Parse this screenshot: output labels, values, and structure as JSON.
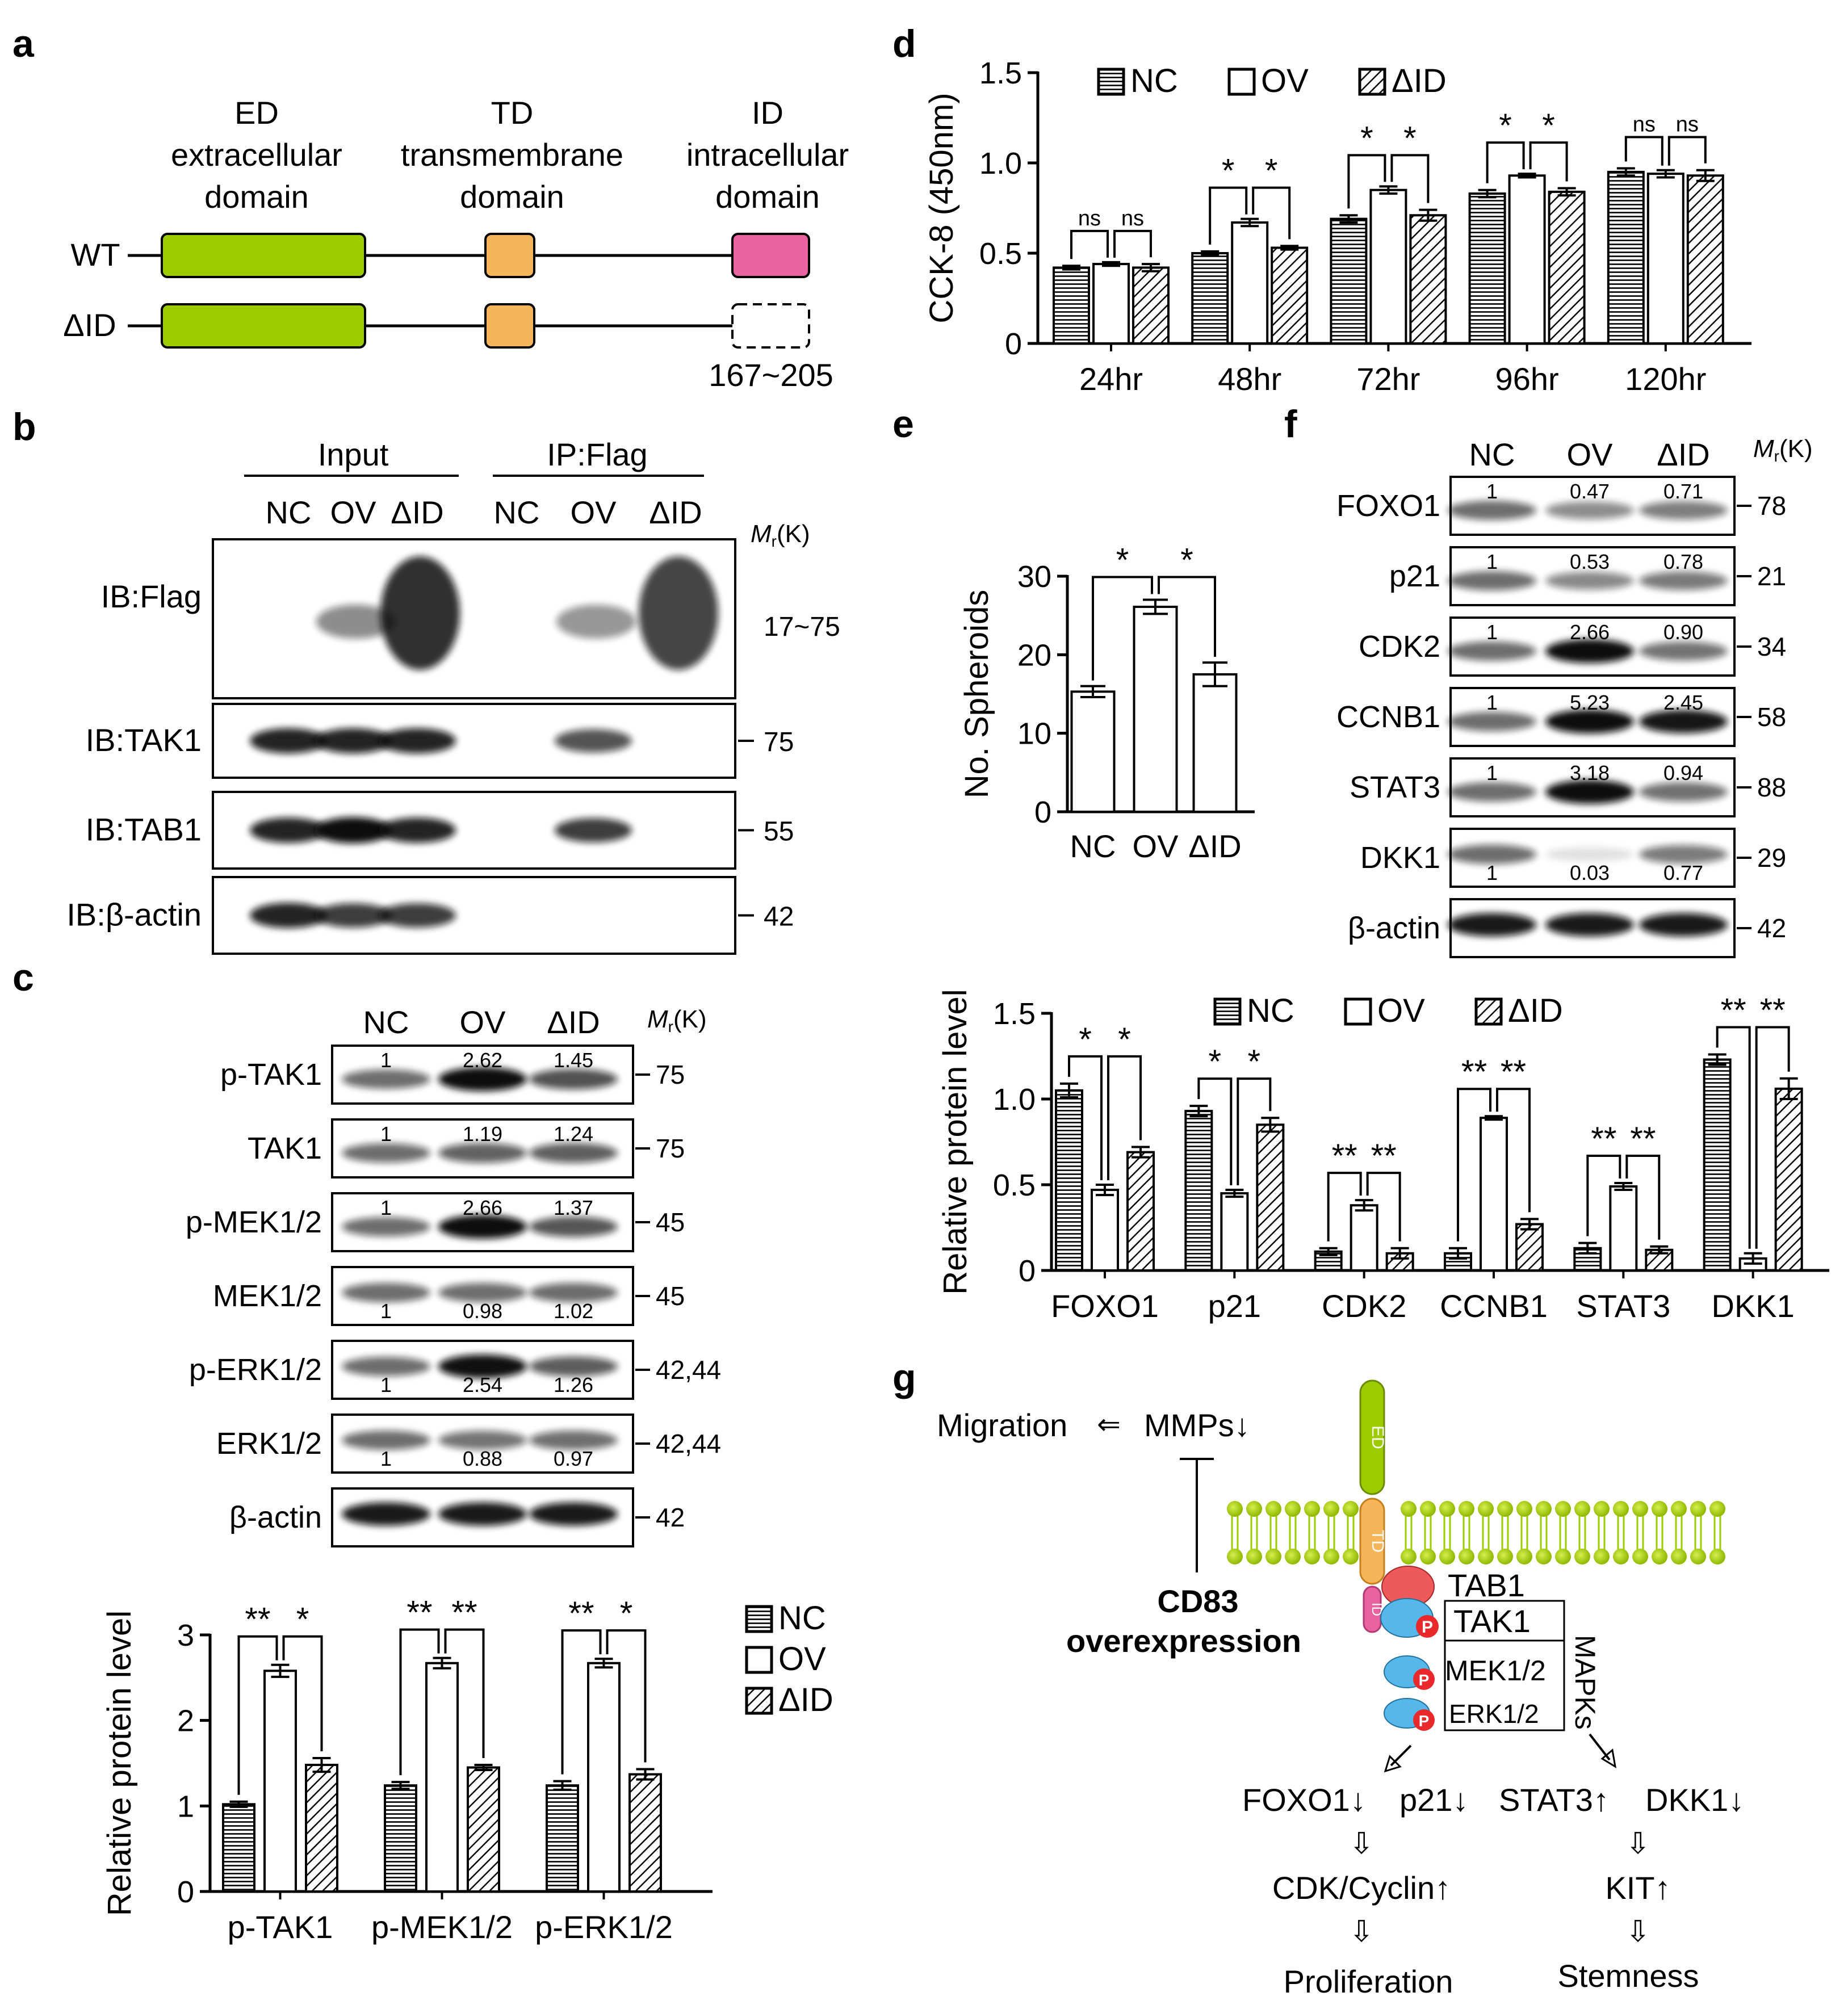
{
  "panel_labels": {
    "a": "a",
    "b": "b",
    "c": "c",
    "d": "d",
    "e": "e",
    "f": "f",
    "g": "g"
  },
  "legend": {
    "nc": "NC",
    "ov": "OV",
    "did": "ΔID"
  },
  "panel_a": {
    "domains": [
      {
        "abbr": "ED",
        "name1": "extracellular",
        "name2": "domain",
        "color": "#9ccc00"
      },
      {
        "abbr": "TD",
        "name1": "transmembrane",
        "name2": "domain",
        "color": "#f7b55a"
      },
      {
        "abbr": "ID",
        "name1": "intracellular",
        "name2": "domain",
        "color": "#e8639f"
      }
    ],
    "rows": [
      "WT",
      "ΔID"
    ],
    "deleted_range": "167~205"
  },
  "panel_b": {
    "group_input": "Input",
    "group_ip": "IP:Flag",
    "lanes": [
      "NC",
      "OV",
      "ΔID",
      "NC",
      "OV",
      "ΔID"
    ],
    "mr_header_m": "M",
    "mr_header_sub": "r",
    "mr_header_k": "(K)",
    "blots": [
      {
        "label": "IB:Flag",
        "mr": "17~75"
      },
      {
        "label": "IB:TAK1",
        "mr": "75"
      },
      {
        "label": "IB:TAB1",
        "mr": "55"
      },
      {
        "label": "IB:β-actin",
        "mr": "42"
      }
    ]
  },
  "panel_c": {
    "lanes": [
      "NC",
      "OV",
      "ΔID"
    ],
    "blots": [
      {
        "label": "p-TAK1",
        "mr": "75",
        "quant": [
          "1",
          "2.62",
          "1.45"
        ],
        "qpos": "top"
      },
      {
        "label": "TAK1",
        "mr": "75",
        "quant": [
          "1",
          "1.19",
          "1.24"
        ],
        "qpos": "top"
      },
      {
        "label": "p-MEK1/2",
        "mr": "45",
        "quant": [
          "1",
          "2.66",
          "1.37"
        ],
        "qpos": "top"
      },
      {
        "label": "MEK1/2",
        "mr": "45",
        "quant": [
          "1",
          "0.98",
          "1.02"
        ],
        "qpos": "bottom"
      },
      {
        "label": "p-ERK1/2",
        "mr": "42,44",
        "quant": [
          "1",
          "2.54",
          "1.26"
        ],
        "qpos": "bottom"
      },
      {
        "label": "ERK1/2",
        "mr": "42,44",
        "quant": [
          "1",
          "0.88",
          "0.97"
        ],
        "qpos": "bottom"
      },
      {
        "label": "β-actin",
        "mr": "42",
        "quant": [],
        "qpos": "none"
      }
    ]
  },
  "panel_f": {
    "lanes": [
      "NC",
      "OV",
      "ΔID"
    ],
    "blots": [
      {
        "label": "FOXO1",
        "mr": "78",
        "quant": [
          "1",
          "0.47",
          "0.71"
        ],
        "qpos": "top"
      },
      {
        "label": "p21",
        "mr": "21",
        "quant": [
          "1",
          "0.53",
          "0.78"
        ],
        "qpos": "top"
      },
      {
        "label": "CDK2",
        "mr": "34",
        "quant": [
          "1",
          "2.66",
          "0.90"
        ],
        "qpos": "top"
      },
      {
        "label": "CCNB1",
        "mr": "58",
        "quant": [
          "1",
          "5.23",
          "2.45"
        ],
        "qpos": "top"
      },
      {
        "label": "STAT3",
        "mr": "88",
        "quant": [
          "1",
          "3.18",
          "0.94"
        ],
        "qpos": "top"
      },
      {
        "label": "DKK1",
        "mr": "29",
        "quant": [
          "1",
          "0.03",
          "0.77"
        ],
        "qpos": "bottom"
      },
      {
        "label": "β-actin",
        "mr": "42",
        "quant": [],
        "qpos": "none"
      }
    ]
  },
  "chart_data": [
    {
      "panel": "c",
      "type": "bar",
      "categories": [
        "p-TAK1",
        "p-MEK1/2",
        "p-ERK1/2"
      ],
      "series": [
        {
          "name": "NC",
          "values": [
            1.02,
            1.24,
            1.24
          ],
          "errors": [
            0.03,
            0.04,
            0.05
          ]
        },
        {
          "name": "OV",
          "values": [
            2.58,
            2.67,
            2.67
          ],
          "errors": [
            0.07,
            0.06,
            0.05
          ]
        },
        {
          "name": "ΔID",
          "values": [
            1.48,
            1.45,
            1.37
          ],
          "errors": [
            0.08,
            0.03,
            0.06
          ]
        }
      ],
      "ylabel": "Relative protein level",
      "ylim": [
        0,
        3
      ],
      "yticks": [
        "0",
        "1",
        "2",
        "3"
      ],
      "significance": [
        [
          "**",
          "*"
        ],
        [
          "**",
          "**"
        ],
        [
          "**",
          "*"
        ]
      ]
    },
    {
      "panel": "d",
      "type": "bar",
      "categories": [
        "24hr",
        "48hr",
        "72hr",
        "96hr",
        "120hr"
      ],
      "series": [
        {
          "name": "NC",
          "values": [
            0.42,
            0.5,
            0.69,
            0.83,
            0.95
          ],
          "errors": [
            0.01,
            0.01,
            0.02,
            0.02,
            0.02
          ]
        },
        {
          "name": "OV",
          "values": [
            0.44,
            0.67,
            0.85,
            0.93,
            0.94
          ],
          "errors": [
            0.01,
            0.02,
            0.02,
            0.01,
            0.02
          ]
        },
        {
          "name": "ΔID",
          "values": [
            0.42,
            0.53,
            0.71,
            0.84,
            0.93
          ],
          "errors": [
            0.02,
            0.01,
            0.03,
            0.02,
            0.03
          ]
        }
      ],
      "ylabel": "CCK-8 (450nm)",
      "ylim": [
        0,
        1.5
      ],
      "yticks": [
        "0",
        "0.5",
        "1.0",
        "1.5"
      ],
      "significance": [
        [
          "ns",
          "ns"
        ],
        [
          "*",
          "*"
        ],
        [
          "*",
          "*"
        ],
        [
          "*",
          "*"
        ],
        [
          "ns",
          "ns"
        ]
      ]
    },
    {
      "panel": "e",
      "type": "bar",
      "categories": [
        "NC",
        "OV",
        "ΔID"
      ],
      "values": [
        15.3,
        26.1,
        17.5
      ],
      "errors": [
        0.7,
        0.9,
        1.5
      ],
      "ylabel": "No. Spheroids",
      "ylim": [
        0,
        30
      ],
      "yticks": [
        "0",
        "10",
        "20",
        "30"
      ],
      "significance": [
        "*",
        "*"
      ]
    },
    {
      "panel": "f",
      "type": "bar",
      "categories": [
        "FOXO1",
        "p21",
        "CDK2",
        "CCNB1",
        "STAT3",
        "DKK1"
      ],
      "series": [
        {
          "name": "NC",
          "values": [
            1.05,
            0.93,
            0.11,
            0.1,
            0.13,
            1.23
          ],
          "errors": [
            0.04,
            0.03,
            0.02,
            0.03,
            0.03,
            0.03
          ]
        },
        {
          "name": "OV",
          "values": [
            0.47,
            0.45,
            0.38,
            0.89,
            0.49,
            0.07
          ],
          "errors": [
            0.03,
            0.02,
            0.03,
            0.01,
            0.02,
            0.03
          ]
        },
        {
          "name": "ΔID",
          "values": [
            0.69,
            0.85,
            0.1,
            0.27,
            0.12,
            1.06
          ],
          "errors": [
            0.03,
            0.04,
            0.03,
            0.03,
            0.02,
            0.06
          ]
        }
      ],
      "ylabel": "Relative protein level",
      "ylim": [
        0,
        1.5
      ],
      "yticks": [
        "0",
        "0.5",
        "1.0",
        "1.5"
      ],
      "significance": [
        [
          "*",
          "*"
        ],
        [
          "*",
          "*"
        ],
        [
          "**",
          "**"
        ],
        [
          "**",
          "**"
        ],
        [
          "**",
          "**"
        ],
        [
          "**",
          "**"
        ]
      ]
    }
  ],
  "panel_g": {
    "migration": "Migration",
    "mmps": "MMPs↓",
    "cd83_1": "CD83",
    "cd83_2": "overexpression",
    "ed": "ED",
    "td": "TD",
    "id": "ID",
    "p": "P",
    "tab1": "TAB1",
    "tak1": "TAK1",
    "mek": "MEK1/2",
    "erk": "ERK1/2",
    "mapks": "MAPKs",
    "foxo1": "FOXO1↓",
    "p21": "p21↓",
    "stat3": "STAT3↑",
    "dkk1": "DKK1↓",
    "cdk": "CDK/Cyclin↑",
    "kit": "KIT↑",
    "prolif": "Proliferation",
    "stem": "Stemness"
  }
}
